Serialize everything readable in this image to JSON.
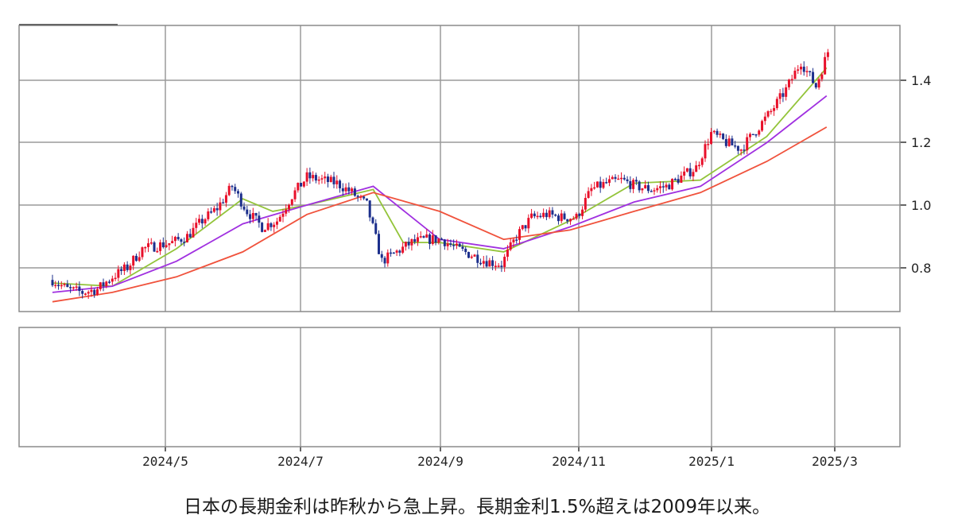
{
  "caption": "日本の長期金利は昨秋から急上昇。長期金利1.5%超えは2009年以来。",
  "colors": {
    "up": "#e8102a",
    "down": "#1c2f8c",
    "short_ma": "#93c43a",
    "mid_ma": "#a030e0",
    "long_ma": "#f0523c",
    "grid": "#9a9a9a",
    "frame": "#8a8a8a"
  },
  "chart_data": {
    "type": "line",
    "ylim": [
      0.66,
      1.58
    ],
    "yticks": [
      "1.4",
      "1.2",
      "1.0",
      "0.8"
    ],
    "xticks": [
      "2024/5",
      "2024/7",
      "2024/9",
      "2024/11",
      "2025/1",
      "2025/3"
    ],
    "grid": true,
    "series": [
      {
        "key": "price",
        "x": [
          "2024-03-04",
          "2024-03-11",
          "2024-03-18",
          "2024-03-25",
          "2024-04-01",
          "2024-04-08",
          "2024-04-15",
          "2024-04-22",
          "2024-04-29",
          "2024-05-06",
          "2024-05-13",
          "2024-05-20",
          "2024-05-27",
          "2024-06-03",
          "2024-06-10",
          "2024-06-17",
          "2024-06-24",
          "2024-07-01",
          "2024-07-08",
          "2024-07-15",
          "2024-07-22",
          "2024-07-29",
          "2024-08-05",
          "2024-08-12",
          "2024-08-19",
          "2024-08-26",
          "2024-09-02",
          "2024-09-09",
          "2024-09-16",
          "2024-09-23",
          "2024-09-30",
          "2024-10-07",
          "2024-10-14",
          "2024-10-21",
          "2024-10-28",
          "2024-11-04",
          "2024-11-11",
          "2024-11-18",
          "2024-11-25",
          "2024-12-02",
          "2024-12-09",
          "2024-12-16",
          "2024-12-23",
          "2024-12-30",
          "2025-01-06",
          "2025-01-13",
          "2025-01-20",
          "2025-01-27",
          "2025-02-03",
          "2025-02-10",
          "2025-02-17",
          "2025-02-24",
          "2025-03-03"
        ],
        "values": [
          0.76,
          0.73,
          0.72,
          0.73,
          0.77,
          0.8,
          0.86,
          0.87,
          0.88,
          0.9,
          0.95,
          0.99,
          1.06,
          0.98,
          0.93,
          0.95,
          1.03,
          1.09,
          1.08,
          1.07,
          1.04,
          1.0,
          0.82,
          0.85,
          0.88,
          0.89,
          0.89,
          0.86,
          0.84,
          0.82,
          0.81,
          0.9,
          0.96,
          0.97,
          0.96,
          0.96,
          1.05,
          1.07,
          1.08,
          1.06,
          1.05,
          1.06,
          1.09,
          1.12,
          1.23,
          1.2,
          1.18,
          1.24,
          1.3,
          1.37,
          1.46,
          1.38,
          1.52
        ]
      },
      {
        "key": "short_ma",
        "x": [
          "2024-03-04",
          "2024-04-01",
          "2024-05-01",
          "2024-06-01",
          "2024-06-15",
          "2024-07-01",
          "2024-08-01",
          "2024-08-15",
          "2024-09-01",
          "2024-10-01",
          "2024-11-01",
          "2024-12-01",
          "2025-01-01",
          "2025-02-01",
          "2025-03-01"
        ],
        "values": [
          0.75,
          0.74,
          0.86,
          1.02,
          0.98,
          1.0,
          1.05,
          0.88,
          0.88,
          0.85,
          0.95,
          1.07,
          1.08,
          1.22,
          1.44
        ]
      },
      {
        "key": "mid_ma",
        "x": [
          "2024-03-04",
          "2024-04-01",
          "2024-05-01",
          "2024-06-01",
          "2024-07-01",
          "2024-08-01",
          "2024-09-01",
          "2024-10-01",
          "2024-11-01",
          "2024-12-01",
          "2025-01-01",
          "2025-02-01",
          "2025-03-01"
        ],
        "values": [
          0.72,
          0.74,
          0.82,
          0.94,
          1.0,
          1.06,
          0.89,
          0.86,
          0.93,
          1.01,
          1.06,
          1.2,
          1.35
        ]
      },
      {
        "key": "long_ma",
        "x": [
          "2024-03-04",
          "2024-04-01",
          "2024-05-01",
          "2024-06-01",
          "2024-07-01",
          "2024-08-01",
          "2024-09-01",
          "2024-10-01",
          "2024-11-01",
          "2024-12-01",
          "2025-01-01",
          "2025-02-01",
          "2025-03-01"
        ],
        "values": [
          0.69,
          0.72,
          0.77,
          0.85,
          0.97,
          1.04,
          0.98,
          0.89,
          0.92,
          0.98,
          1.04,
          1.14,
          1.25
        ]
      }
    ]
  }
}
